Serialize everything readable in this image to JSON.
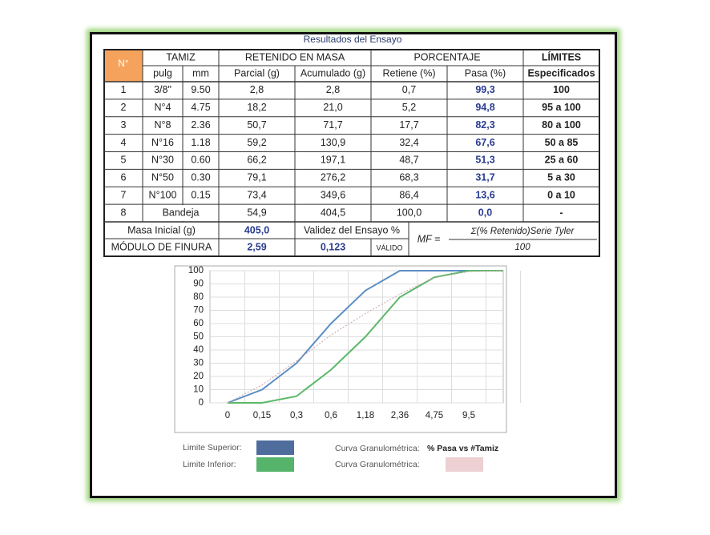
{
  "title": "Resultados del Ensayo",
  "table": {
    "header": {
      "n": "N°",
      "tamiz": "TAMIZ",
      "retenido": "RETENIDO EN MASA",
      "porcentaje": "PORCENTAJE",
      "limites": "LÍMITES",
      "sub": [
        "pulg",
        "mm",
        "Parcial (g)",
        "Acumulado (g)",
        "Retiene (%)",
        "Pasa (%)",
        "Especificados"
      ]
    },
    "rows": [
      [
        "1",
        "3/8\"",
        "9.50",
        "2,8",
        "2,8",
        "0,7",
        "99,3",
        "100"
      ],
      [
        "2",
        "N°4",
        "4.75",
        "18,2",
        "21,0",
        "5,2",
        "94,8",
        "95 a 100"
      ],
      [
        "3",
        "N°8",
        "2.36",
        "50,7",
        "71,7",
        "17,7",
        "82,3",
        "80 a 100"
      ],
      [
        "4",
        "N°16",
        "1.18",
        "59,2",
        "130,9",
        "32,4",
        "67,6",
        "50 a 85"
      ],
      [
        "5",
        "N°30",
        "0.60",
        "66,2",
        "197,1",
        "48,7",
        "51,3",
        "25 a 60"
      ],
      [
        "6",
        "N°50",
        "0.30",
        "79,1",
        "276,2",
        "68,3",
        "31,7",
        "5 a 30"
      ],
      [
        "7",
        "N°100",
        "0.15",
        "73,4",
        "349,6",
        "86,4",
        "13,6",
        "0 a 10"
      ],
      [
        "8",
        "Bandeja",
        "54,9",
        "404,5",
        "100,0",
        "0,0",
        "-"
      ]
    ]
  },
  "summary": {
    "masa_label": "Masa Inicial (g)",
    "masa": "405,0",
    "validez_label": "Validez del Ensayo %",
    "modulo_label": "MÓDULO DE FINURA",
    "modulo": "2,59",
    "validez": "0,123",
    "valido": "VÁLIDO",
    "formula_lhs": "MF =",
    "formula_num": "Σ(% Retenido)Serie Tyler",
    "formula_den": "100"
  },
  "chart_data": {
    "type": "line",
    "categories": [
      "0",
      "0,15",
      "0,3",
      "0,6",
      "1,18",
      "2,36",
      "4,75",
      "9,5",
      null
    ],
    "ylim": [
      0,
      100
    ],
    "yticks": [
      0,
      10,
      20,
      30,
      40,
      50,
      60,
      70,
      80,
      90,
      100
    ],
    "grid": true,
    "title_prefix": "Curva Granulométrica:",
    "title": "% Pasa vs #Tamiz",
    "series": [
      {
        "name": "Limite Superior:",
        "color": "#5b8fc4",
        "swatch": "#4f6d9c",
        "values": [
          0,
          10,
          30,
          60,
          85,
          100,
          100,
          100,
          100
        ]
      },
      {
        "name": "Limite Inferior:",
        "color": "#5cb86a",
        "swatch": "#55b36a",
        "values": [
          0,
          0,
          5,
          25,
          50,
          80,
          95,
          100,
          100
        ]
      },
      {
        "name": "Curva Granulométrica:",
        "color": "#c9a3ad",
        "swatch": "#ecd0d2",
        "dashed": true,
        "values": [
          0,
          13.6,
          31.7,
          51.3,
          67.6,
          82.3,
          94.8,
          99.3,
          100
        ]
      }
    ]
  }
}
